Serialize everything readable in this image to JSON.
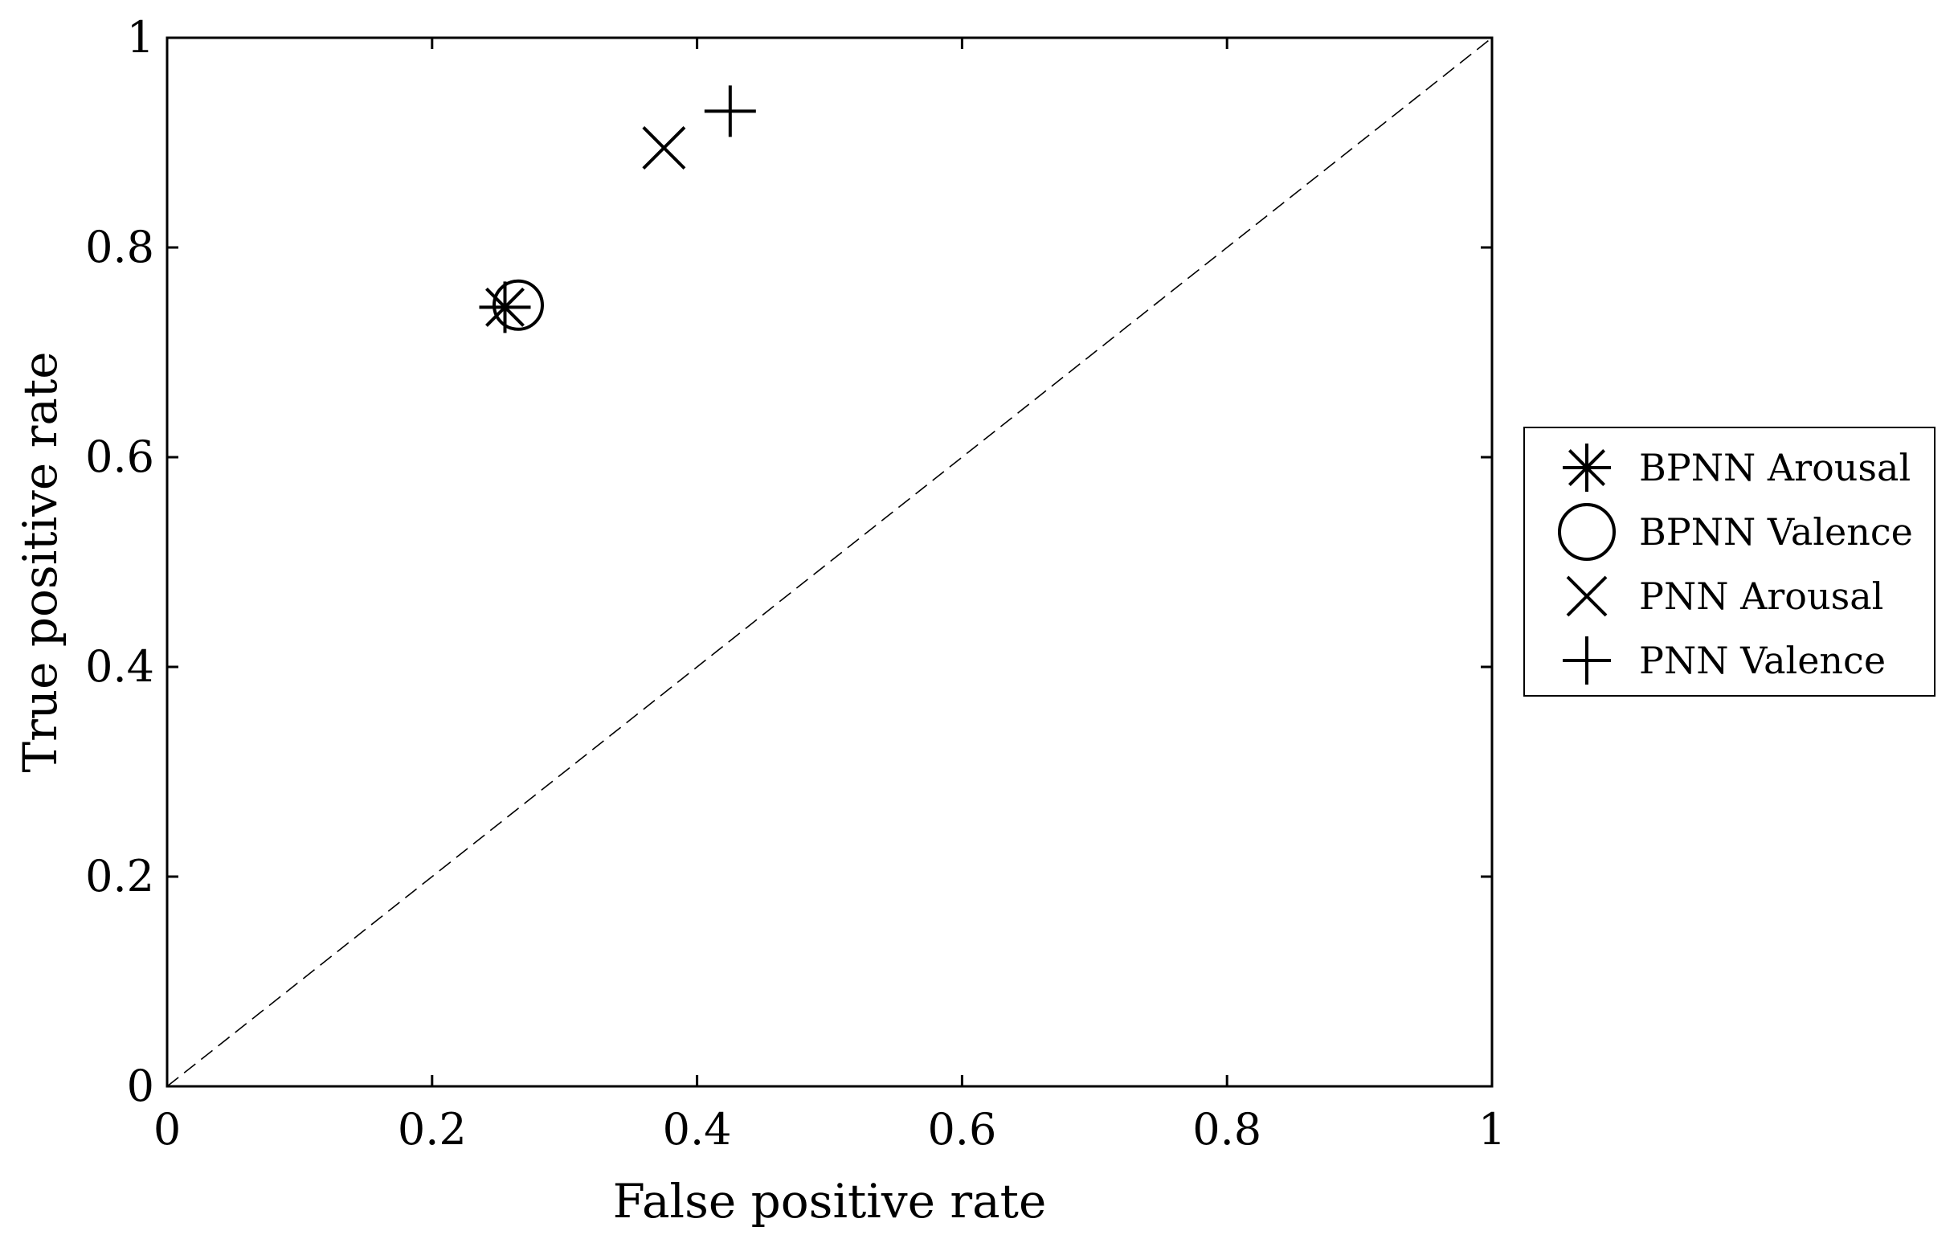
{
  "chart_data": {
    "type": "scatter",
    "xlabel": "False positive rate",
    "ylabel": "True positive rate",
    "xlim": [
      0,
      1
    ],
    "ylim": [
      0,
      1
    ],
    "xticks": [
      "0",
      "0.2",
      "0.4",
      "0.6",
      "0.8",
      "1"
    ],
    "yticks": [
      "0",
      "0.2",
      "0.4",
      "0.6",
      "0.8",
      "1"
    ],
    "grid": false,
    "legend_position": "right",
    "reference_line": {
      "style": "dashed",
      "from": [
        0,
        0
      ],
      "to": [
        1,
        1
      ]
    },
    "series": [
      {
        "name": "BPNN Arousal",
        "marker": "asterisk",
        "x": [
          0.255
        ],
        "y": [
          0.743
        ]
      },
      {
        "name": "BPNN Valence",
        "marker": "circle",
        "x": [
          0.265
        ],
        "y": [
          0.745
        ]
      },
      {
        "name": "PNN Arousal",
        "marker": "x",
        "x": [
          0.375
        ],
        "y": [
          0.895
        ]
      },
      {
        "name": "PNN Valence",
        "marker": "plus",
        "x": [
          0.425
        ],
        "y": [
          0.93
        ]
      }
    ],
    "colors": {
      "marker": "#000000",
      "axes": "#000000",
      "background": "#ffffff"
    }
  }
}
